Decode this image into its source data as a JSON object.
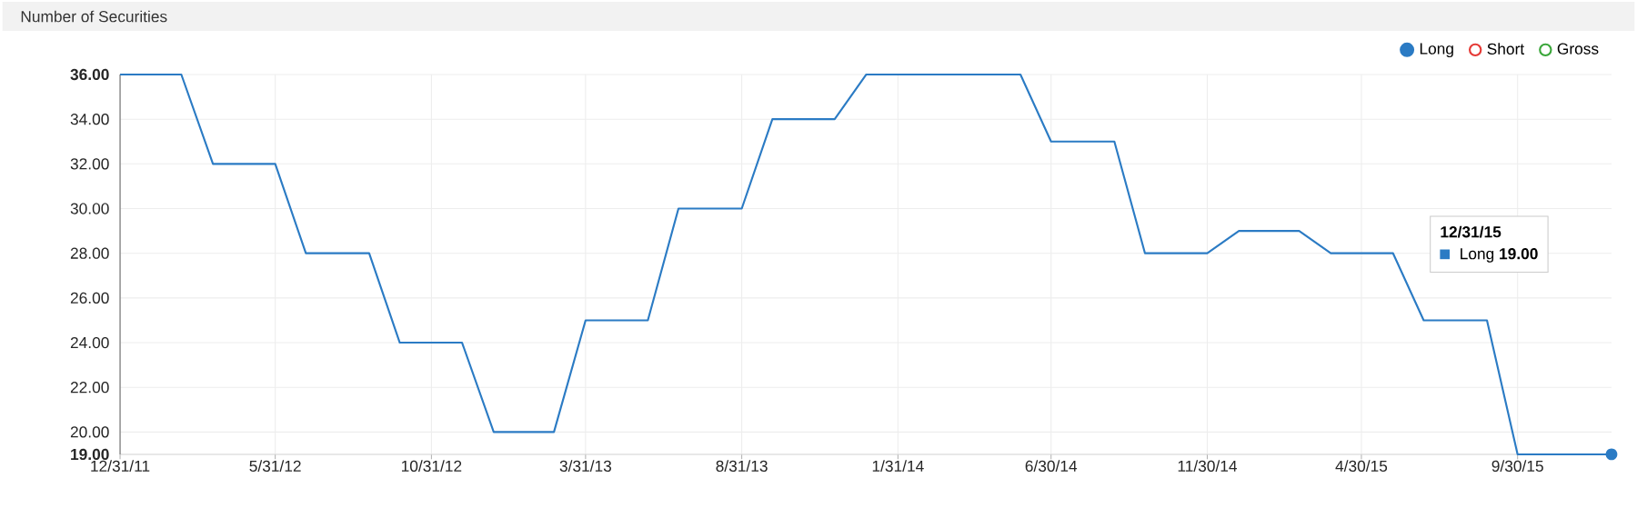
{
  "chart_data": {
    "type": "line",
    "title": "Number of Securities",
    "x": [
      "2011-12-31",
      "2012-01-31",
      "2012-02-29",
      "2012-03-31",
      "2012-04-30",
      "2012-05-31",
      "2012-06-30",
      "2012-07-31",
      "2012-08-31",
      "2012-09-30",
      "2012-10-31",
      "2012-11-30",
      "2012-12-31",
      "2013-01-31",
      "2013-02-28",
      "2013-03-31",
      "2013-04-30",
      "2013-05-31",
      "2013-06-30",
      "2013-07-31",
      "2013-08-31",
      "2013-09-30",
      "2013-10-31",
      "2013-11-30",
      "2013-12-31",
      "2014-01-31",
      "2014-02-28",
      "2014-03-31",
      "2014-04-30",
      "2014-05-31",
      "2014-06-30",
      "2014-07-31",
      "2014-08-31",
      "2014-09-30",
      "2014-10-31",
      "2014-11-30",
      "2014-12-31",
      "2015-01-31",
      "2015-02-28",
      "2015-03-31",
      "2015-04-30",
      "2015-05-31",
      "2015-06-30",
      "2015-07-31",
      "2015-08-31",
      "2015-09-30",
      "2015-10-31",
      "2015-11-30",
      "2015-12-31"
    ],
    "series": [
      {
        "name": "Long",
        "color": "#2b7bc4",
        "values": [
          36,
          36,
          36,
          32,
          32,
          32,
          28,
          28,
          28,
          24,
          24,
          24,
          20,
          20,
          20,
          25,
          25,
          25,
          30,
          30,
          30,
          34,
          34,
          34,
          36,
          36,
          36,
          36,
          36,
          36,
          33,
          33,
          33,
          28,
          28,
          28,
          29,
          29,
          29,
          28,
          28,
          28,
          25,
          25,
          25,
          19,
          19,
          19,
          19
        ]
      },
      {
        "name": "Short",
        "color": "#e53935",
        "values": [
          null,
          null,
          null,
          null,
          null,
          null,
          null,
          null,
          null,
          null,
          null,
          null,
          null,
          null,
          null,
          null,
          null,
          null,
          null,
          null,
          null,
          null,
          null,
          null,
          null,
          null,
          null,
          null,
          null,
          null,
          null,
          null,
          null,
          null,
          null,
          null,
          null,
          null,
          null,
          null,
          null,
          null,
          null,
          null,
          null,
          null,
          null,
          null,
          null
        ]
      },
      {
        "name": "Gross",
        "color": "#3aa63a",
        "values": [
          null,
          null,
          null,
          null,
          null,
          null,
          null,
          null,
          null,
          null,
          null,
          null,
          null,
          null,
          null,
          null,
          null,
          null,
          null,
          null,
          null,
          null,
          null,
          null,
          null,
          null,
          null,
          null,
          null,
          null,
          null,
          null,
          null,
          null,
          null,
          null,
          null,
          null,
          null,
          null,
          null,
          null,
          null,
          null,
          null,
          null,
          null,
          null,
          null
        ]
      }
    ],
    "xlim": [
      "2011-12-31",
      "2015-12-31"
    ],
    "xticks": [
      {
        "value": "2011-12-31",
        "label": "12/31/11"
      },
      {
        "value": "2012-05-31",
        "label": "5/31/12"
      },
      {
        "value": "2012-10-31",
        "label": "10/31/12"
      },
      {
        "value": "2013-03-31",
        "label": "3/31/13"
      },
      {
        "value": "2013-08-31",
        "label": "8/31/13"
      },
      {
        "value": "2014-01-31",
        "label": "1/31/14"
      },
      {
        "value": "2014-06-30",
        "label": "6/30/14"
      },
      {
        "value": "2014-11-30",
        "label": "11/30/14"
      },
      {
        "value": "2015-04-30",
        "label": "4/30/15"
      },
      {
        "value": "2015-09-30",
        "label": "9/30/15"
      }
    ],
    "ylim": [
      19,
      36
    ],
    "yticks": [
      {
        "value": 19,
        "label": "19.00"
      },
      {
        "value": 20,
        "label": "20.00"
      },
      {
        "value": 22,
        "label": "22.00"
      },
      {
        "value": 24,
        "label": "24.00"
      },
      {
        "value": 26,
        "label": "26.00"
      },
      {
        "value": 28,
        "label": "28.00"
      },
      {
        "value": 30,
        "label": "30.00"
      },
      {
        "value": 32,
        "label": "32.00"
      },
      {
        "value": 34,
        "label": "34.00"
      },
      {
        "value": 36,
        "label": "36.00"
      }
    ],
    "grid": true,
    "legend": "top right",
    "annotations": [
      "12/31/15",
      "Long **19.00**"
    ]
  }
}
